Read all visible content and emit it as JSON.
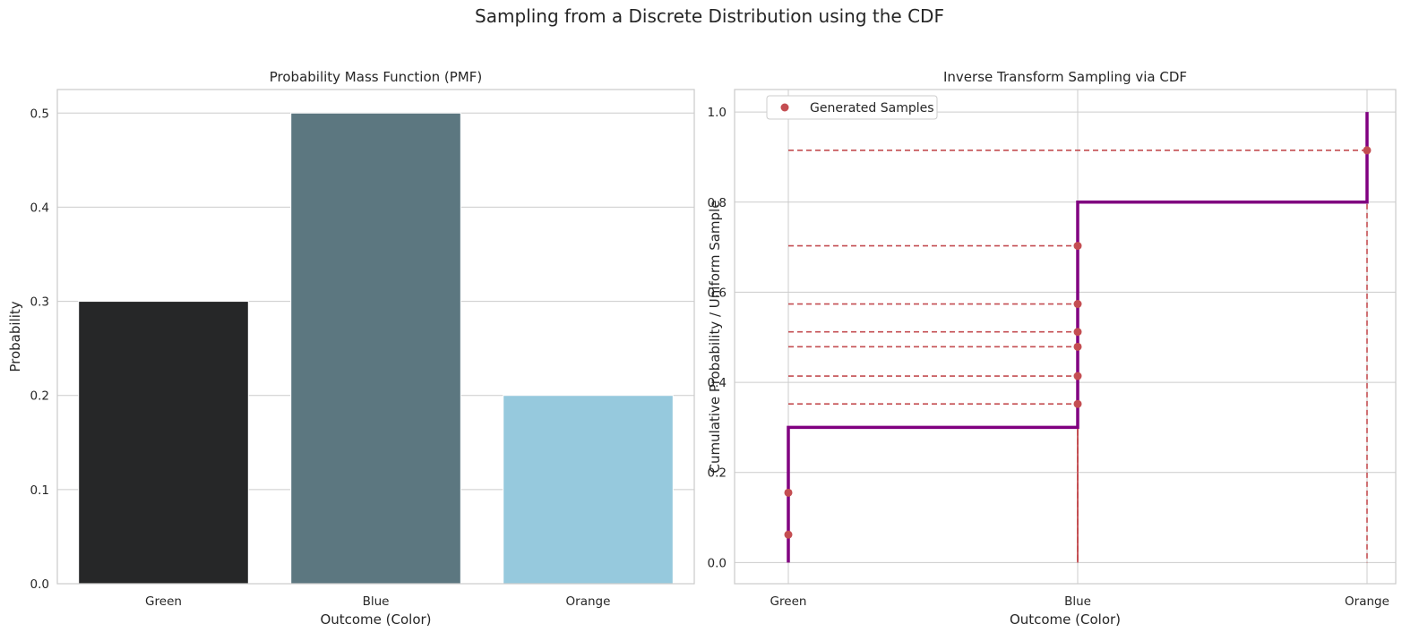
{
  "figure": {
    "title": "Sampling from a Discrete Distribution using the CDF"
  },
  "chart_data": [
    {
      "type": "bar",
      "title": "Probability Mass Function (PMF)",
      "xlabel": "Outcome (Color)",
      "ylabel": "Probability",
      "categories": [
        "Green",
        "Blue",
        "Orange"
      ],
      "values": [
        0.3,
        0.5,
        0.2
      ],
      "colors": [
        "#262728",
        "#5c7780",
        "#96c9dd"
      ],
      "ylim": [
        0,
        0.525
      ],
      "yticks": [
        0.0,
        0.1,
        0.2,
        0.3,
        0.4,
        0.5
      ],
      "ytick_labels": [
        "0.0",
        "0.1",
        "0.2",
        "0.3",
        "0.4",
        "0.5"
      ],
      "grid": true
    },
    {
      "type": "line",
      "title": "Inverse Transform Sampling via CDF",
      "xlabel": "Outcome (Color)",
      "ylabel": "Cumulative Probability / Uniform Sample",
      "categories": [
        "Green",
        "Blue",
        "Orange"
      ],
      "cdf_step": {
        "x": [
          "Green",
          "Green",
          "Blue",
          "Blue",
          "Orange",
          "Orange"
        ],
        "y": [
          0.0,
          0.3,
          0.3,
          0.8,
          0.8,
          1.0
        ],
        "color": "#800080"
      },
      "samples": {
        "name": "Generated Samples",
        "color": "#c44e52",
        "points": [
          {
            "u": 0.062,
            "outcome": "Green"
          },
          {
            "u": 0.155,
            "outcome": "Green"
          },
          {
            "u": 0.352,
            "outcome": "Blue"
          },
          {
            "u": 0.414,
            "outcome": "Blue"
          },
          {
            "u": 0.479,
            "outcome": "Blue"
          },
          {
            "u": 0.512,
            "outcome": "Blue"
          },
          {
            "u": 0.574,
            "outcome": "Blue"
          },
          {
            "u": 0.703,
            "outcome": "Blue"
          },
          {
            "u": 0.915,
            "outcome": "Orange"
          }
        ]
      },
      "ylim": [
        -0.047,
        1.05
      ],
      "yticks": [
        0.0,
        0.2,
        0.4,
        0.6,
        0.8,
        1.0
      ],
      "ytick_labels": [
        "0.0",
        "0.2",
        "0.4",
        "0.6",
        "0.8",
        "1.0"
      ],
      "legend": "top-left",
      "grid": true
    }
  ]
}
